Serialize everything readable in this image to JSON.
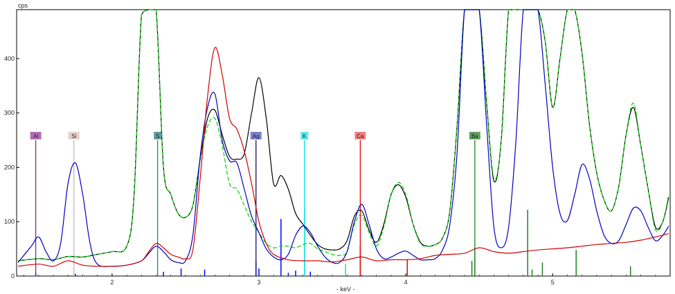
{
  "chart_data": {
    "type": "line",
    "ylabel": "cps",
    "xlabel": "- keV -",
    "xlim": [
      1.35,
      5.8
    ],
    "ylim": [
      0,
      490
    ],
    "x_ticks": [
      2,
      3,
      4,
      5
    ],
    "y_ticks": [
      0,
      100,
      200,
      300,
      400
    ],
    "grid": false,
    "series": [
      {
        "color": "#000000",
        "x": [
          1.36,
          1.5,
          1.6,
          1.7,
          1.8,
          1.9,
          2.0,
          2.1,
          2.15,
          2.2,
          2.25,
          2.3,
          2.35,
          2.4,
          2.45,
          2.5,
          2.55,
          2.6,
          2.65,
          2.7,
          2.75,
          2.8,
          2.85,
          2.9,
          2.95,
          3.0,
          3.05,
          3.1,
          3.15,
          3.2,
          3.25,
          3.3,
          3.35,
          3.4,
          3.45,
          3.5,
          3.55,
          3.6,
          3.65,
          3.7,
          3.75,
          3.8,
          3.85,
          3.9,
          3.95,
          4.0,
          4.05,
          4.1,
          4.15,
          4.2,
          4.25,
          4.3,
          4.35,
          4.4,
          4.45,
          4.5,
          4.55,
          4.6,
          4.65,
          4.7,
          4.75,
          4.8,
          4.85,
          4.9,
          4.95,
          5.0,
          5.05,
          5.1,
          5.15,
          5.2,
          5.25,
          5.3,
          5.35,
          5.4,
          5.45,
          5.5,
          5.55,
          5.6,
          5.65,
          5.7,
          5.75,
          5.79
        ],
        "y": [
          28,
          32,
          30,
          36,
          35,
          40,
          45,
          55,
          150,
          480,
          490,
          490,
          200,
          150,
          115,
          108,
          130,
          215,
          290,
          305,
          260,
          220,
          215,
          225,
          300,
          365,
          290,
          170,
          185,
          160,
          115,
          95,
          75,
          58,
          50,
          48,
          50,
          65,
          110,
          120,
          85,
          62,
          95,
          150,
          168,
          145,
          95,
          62,
          55,
          58,
          70,
          120,
          280,
          490,
          490,
          490,
          320,
          175,
          250,
          490,
          490,
          490,
          490,
          490,
          430,
          310,
          400,
          490,
          490,
          410,
          280,
          190,
          140,
          120,
          165,
          260,
          310,
          240,
          160,
          90,
          100,
          145
        ]
      },
      {
        "color": "#00d000",
        "dashed": true,
        "x": [
          1.36,
          1.5,
          1.6,
          1.7,
          1.8,
          1.9,
          2.0,
          2.1,
          2.15,
          2.2,
          2.25,
          2.3,
          2.35,
          2.4,
          2.45,
          2.5,
          2.55,
          2.6,
          2.65,
          2.7,
          2.75,
          2.8,
          2.85,
          2.9,
          2.95,
          3.0,
          3.05,
          3.1,
          3.15,
          3.2,
          3.25,
          3.3,
          3.35,
          3.4,
          3.45,
          3.5,
          3.55,
          3.6,
          3.65,
          3.7,
          3.75,
          3.8,
          3.85,
          3.9,
          3.95,
          4.0,
          4.05,
          4.1,
          4.15,
          4.2,
          4.25,
          4.3,
          4.35,
          4.4,
          4.45,
          4.5,
          4.55,
          4.6,
          4.65,
          4.7,
          4.75,
          4.8,
          4.85,
          4.9,
          4.95,
          5.0,
          5.05,
          5.1,
          5.15,
          5.2,
          5.25,
          5.3,
          5.35,
          5.4,
          5.45,
          5.5,
          5.55,
          5.6,
          5.65,
          5.7,
          5.75,
          5.79
        ],
        "y": [
          28,
          32,
          30,
          36,
          35,
          40,
          45,
          55,
          150,
          480,
          490,
          490,
          200,
          150,
          115,
          108,
          130,
          215,
          275,
          290,
          240,
          170,
          160,
          130,
          100,
          80,
          60,
          52,
          55,
          55,
          52,
          58,
          60,
          50,
          45,
          40,
          38,
          45,
          95,
          112,
          80,
          55,
          90,
          150,
          172,
          150,
          95,
          60,
          55,
          58,
          70,
          120,
          280,
          490,
          490,
          490,
          320,
          180,
          250,
          490,
          490,
          490,
          490,
          490,
          430,
          310,
          400,
          490,
          490,
          410,
          280,
          190,
          140,
          120,
          165,
          260,
          318,
          240,
          160,
          85,
          100,
          150
        ]
      },
      {
        "color": "#0000c0",
        "x": [
          1.36,
          1.45,
          1.5,
          1.55,
          1.6,
          1.65,
          1.7,
          1.75,
          1.8,
          1.85,
          1.9,
          2.0,
          2.1,
          2.2,
          2.25,
          2.3,
          2.35,
          2.4,
          2.45,
          2.5,
          2.55,
          2.6,
          2.65,
          2.7,
          2.75,
          2.8,
          2.85,
          2.9,
          2.95,
          3.0,
          3.05,
          3.1,
          3.15,
          3.2,
          3.25,
          3.3,
          3.35,
          3.4,
          3.45,
          3.5,
          3.55,
          3.6,
          3.65,
          3.7,
          3.75,
          3.8,
          3.85,
          3.9,
          3.95,
          4.0,
          4.05,
          4.1,
          4.15,
          4.2,
          4.25,
          4.3,
          4.35,
          4.4,
          4.45,
          4.5,
          4.55,
          4.6,
          4.65,
          4.7,
          4.75,
          4.8,
          4.85,
          4.9,
          4.95,
          5.0,
          5.05,
          5.1,
          5.15,
          5.2,
          5.25,
          5.3,
          5.35,
          5.4,
          5.45,
          5.5,
          5.55,
          5.6,
          5.65,
          5.7,
          5.75,
          5.79
        ],
        "y": [
          25,
          55,
          72,
          45,
          28,
          60,
          170,
          208,
          150,
          60,
          22,
          18,
          20,
          28,
          42,
          55,
          45,
          30,
          25,
          28,
          75,
          220,
          310,
          335,
          250,
          212,
          208,
          160,
          110,
          80,
          50,
          35,
          30,
          40,
          75,
          92,
          80,
          55,
          35,
          25,
          25,
          45,
          100,
          132,
          95,
          50,
          32,
          35,
          42,
          46,
          38,
          30,
          30,
          32,
          48,
          95,
          230,
          490,
          490,
          490,
          280,
          90,
          52,
          90,
          250,
          490,
          490,
          490,
          350,
          200,
          115,
          102,
          150,
          205,
          180,
          120,
          75,
          60,
          65,
          95,
          125,
          120,
          90,
          65,
          75,
          92
        ]
      },
      {
        "color": "#d00000",
        "x": [
          1.36,
          1.5,
          1.6,
          1.7,
          1.8,
          1.9,
          2.0,
          2.1,
          2.2,
          2.25,
          2.3,
          2.35,
          2.4,
          2.45,
          2.5,
          2.55,
          2.6,
          2.65,
          2.7,
          2.75,
          2.8,
          2.85,
          2.9,
          2.95,
          3.0,
          3.05,
          3.1,
          3.2,
          3.3,
          3.4,
          3.5,
          3.6,
          3.7,
          3.8,
          3.9,
          4.0,
          4.1,
          4.2,
          4.3,
          4.4,
          4.5,
          4.6,
          4.7,
          4.8,
          4.9,
          5.0,
          5.1,
          5.2,
          5.3,
          5.4,
          5.5,
          5.6,
          5.7,
          5.79
        ],
        "y": [
          18,
          22,
          18,
          28,
          20,
          18,
          18,
          20,
          28,
          45,
          60,
          52,
          40,
          35,
          32,
          48,
          180,
          330,
          420,
          370,
          290,
          270,
          230,
          170,
          100,
          60,
          40,
          30,
          28,
          28,
          26,
          30,
          35,
          28,
          30,
          30,
          32,
          38,
          40,
          42,
          52,
          45,
          42,
          45,
          48,
          50,
          52,
          55,
          58,
          60,
          62,
          66,
          72,
          78
        ]
      }
    ],
    "element_markers": [
      {
        "label": "Al",
        "x": 1.48,
        "color": "#8a2090",
        "label_bg": "#b070b0"
      },
      {
        "label": "Si",
        "x": 1.74,
        "color": "#d0b0b0",
        "label_bg": "#e8d0d0"
      },
      {
        "label": "S",
        "x": 2.31,
        "color": "#208090",
        "label_bg": "#60a0a0"
      },
      {
        "label": "Ag",
        "x": 2.98,
        "color": "#101060",
        "label_bg": "#8080d0"
      },
      {
        "label": "K",
        "x": 3.31,
        "color": "#00e0e0",
        "label_bg": "#60e8f0"
      },
      {
        "label": "Ca",
        "x": 3.69,
        "color": "#e00000",
        "label_bg": "#f08080"
      },
      {
        "label": "Ba",
        "x": 4.47,
        "color": "#208020",
        "label_bg": "#60a060"
      }
    ],
    "lines_spectrum": [
      {
        "x": 1.48,
        "y": 6,
        "color": "#0000ff"
      },
      {
        "x": 1.75,
        "y": 4,
        "color": "#0000ff"
      },
      {
        "x": 2.35,
        "y": 8,
        "color": "#0000ff"
      },
      {
        "x": 2.47,
        "y": 14,
        "color": "#0000ff"
      },
      {
        "x": 2.63,
        "y": 12,
        "color": "#0000ff"
      },
      {
        "x": 2.98,
        "y": 28,
        "color": "#0000ff"
      },
      {
        "x": 3.0,
        "y": 14,
        "color": "#0000ff"
      },
      {
        "x": 3.15,
        "y": 105,
        "color": "#0000ff"
      },
      {
        "x": 3.2,
        "y": 6,
        "color": "#0000ff"
      },
      {
        "x": 3.25,
        "y": 10,
        "color": "#0000ff"
      },
      {
        "x": 3.31,
        "y": 125,
        "color": "#00e0e0"
      },
      {
        "x": 3.35,
        "y": 8,
        "color": "#0000ff"
      },
      {
        "x": 3.59,
        "y": 22,
        "color": "#00e0e0"
      },
      {
        "x": 3.69,
        "y": 55,
        "color": "#e00000"
      },
      {
        "x": 4.01,
        "y": 30,
        "color": "#e00000"
      },
      {
        "x": 4.45,
        "y": 28,
        "color": "#208020"
      },
      {
        "x": 4.47,
        "y": 46,
        "color": "#208020"
      },
      {
        "x": 4.83,
        "y": 122,
        "color": "#208020"
      },
      {
        "x": 4.86,
        "y": 12,
        "color": "#208020"
      },
      {
        "x": 4.93,
        "y": 25,
        "color": "#208020"
      },
      {
        "x": 5.16,
        "y": 48,
        "color": "#208020"
      },
      {
        "x": 5.53,
        "y": 18,
        "color": "#208020"
      }
    ]
  }
}
